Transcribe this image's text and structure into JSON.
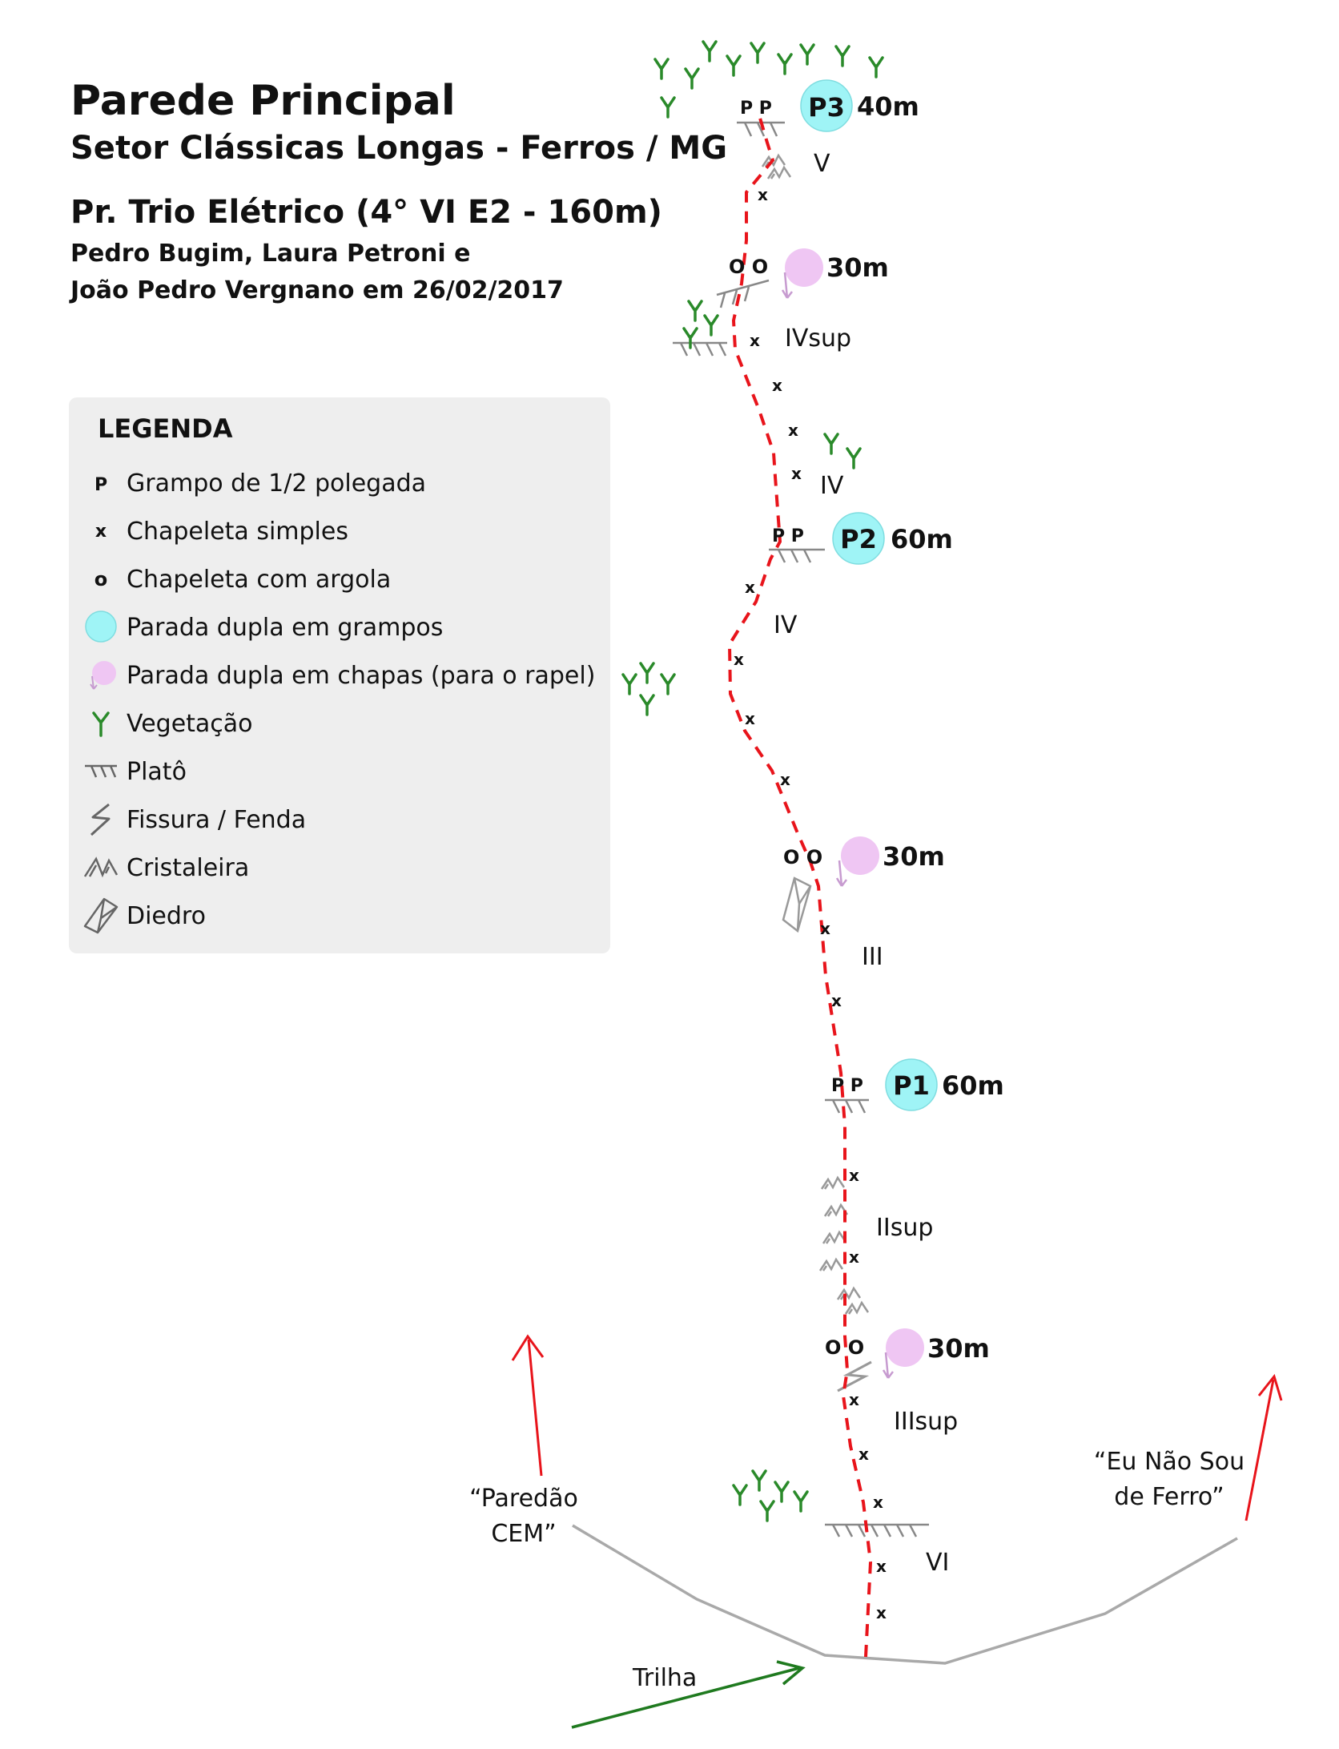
{
  "title": {
    "line1": "Parede Principal",
    "line2": "Setor Clássicas Longas - Ferros / MG",
    "route": "Pr. Trio Elétrico (4° VI E2 - 160m)",
    "authors1": "Pedro Bugim, Laura Petroni e",
    "authors2": "João Pedro Vergnano em 26/02/2017"
  },
  "legend": {
    "title": "LEGENDA",
    "items": [
      {
        "symbol": "P",
        "icon": "p-bolt-icon",
        "label": "Grampo de 1/2 polegada"
      },
      {
        "symbol": "x",
        "icon": "x-bolt-icon",
        "label": "Chapeleta simples"
      },
      {
        "symbol": "o",
        "icon": "o-bolt-icon",
        "label": "Chapeleta com argola"
      },
      {
        "icon": "cyan-anchor-icon",
        "label": "Parada dupla em grampos"
      },
      {
        "icon": "pink-rappel-anchor-icon",
        "label": "Parada dupla em chapas (para o rapel)"
      },
      {
        "icon": "vegetation-icon",
        "label": "Vegetação"
      },
      {
        "icon": "ledge-icon",
        "label": "Platô"
      },
      {
        "icon": "crack-icon",
        "label": "Fissura / Fenda"
      },
      {
        "icon": "crystal-icon",
        "label": "Cristaleira"
      },
      {
        "icon": "dihedral-icon",
        "label": "Diedro"
      }
    ]
  },
  "colors": {
    "route_line": "#e8141b",
    "anchor_cyan": "#9ff4f6",
    "anchor_pink": "#efc6f3",
    "vegetation": "#2a8a2a",
    "terrain": "#a9a9a9",
    "trail": "#1f7a1f",
    "legend_bg": "#eeeeee"
  },
  "anchors": [
    {
      "id": "p3",
      "kind": "double-bolt",
      "bolts": "P P",
      "label": "P3",
      "length": "40m"
    },
    {
      "id": "r1",
      "kind": "rappel",
      "bolts": "O O",
      "length": "30m"
    },
    {
      "id": "p2",
      "kind": "double-bolt",
      "bolts": "P P",
      "label": "P2",
      "length": "60m"
    },
    {
      "id": "r2",
      "kind": "rappel",
      "bolts": "O O",
      "length": "30m"
    },
    {
      "id": "p1",
      "kind": "double-bolt",
      "bolts": "P P",
      "label": "P1",
      "length": "60m"
    },
    {
      "id": "r3",
      "kind": "rappel",
      "bolts": "O O",
      "length": "30m"
    }
  ],
  "grades": [
    "V",
    "IVsup",
    "IV",
    "IV",
    "III",
    "IIsup",
    "IIIsup",
    "VI"
  ],
  "bolt_symbol": "x",
  "neighbors": {
    "left": {
      "line1": "“Paredão",
      "line2": "CEM”"
    },
    "right": {
      "line1": "“Eu Não Sou",
      "line2": "de Ferro”"
    }
  },
  "trail": "Trilha"
}
